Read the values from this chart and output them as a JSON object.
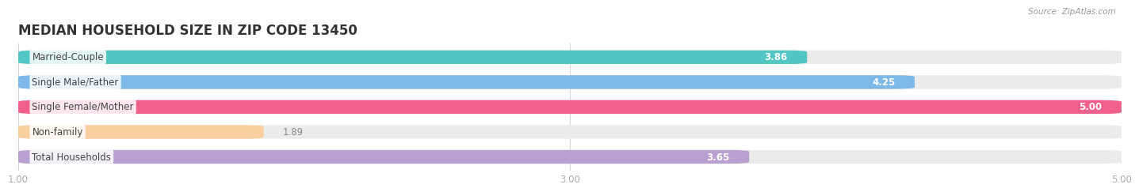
{
  "title": "MEDIAN HOUSEHOLD SIZE IN ZIP CODE 13450",
  "source": "Source: ZipAtlas.com",
  "categories": [
    "Married-Couple",
    "Single Male/Father",
    "Single Female/Mother",
    "Non-family",
    "Total Households"
  ],
  "values": [
    3.86,
    4.25,
    5.0,
    1.89,
    3.65
  ],
  "bar_colors": [
    "#52c5c5",
    "#7db8e8",
    "#f0608a",
    "#f9cfa0",
    "#b8a0d0"
  ],
  "xlim": [
    1.0,
    5.0
  ],
  "xticks": [
    1.0,
    3.0,
    5.0
  ],
  "xtick_labels": [
    "1.00",
    "3.00",
    "5.00"
  ],
  "title_fontsize": 12,
  "label_fontsize": 8.5,
  "value_fontsize": 8.5,
  "bar_height": 0.55,
  "bar_gap": 1.0,
  "background_color": "#ffffff",
  "bg_bar_color": "#ebebeb",
  "grid_color": "#d8d8d8",
  "tick_color": "#aaaaaa"
}
